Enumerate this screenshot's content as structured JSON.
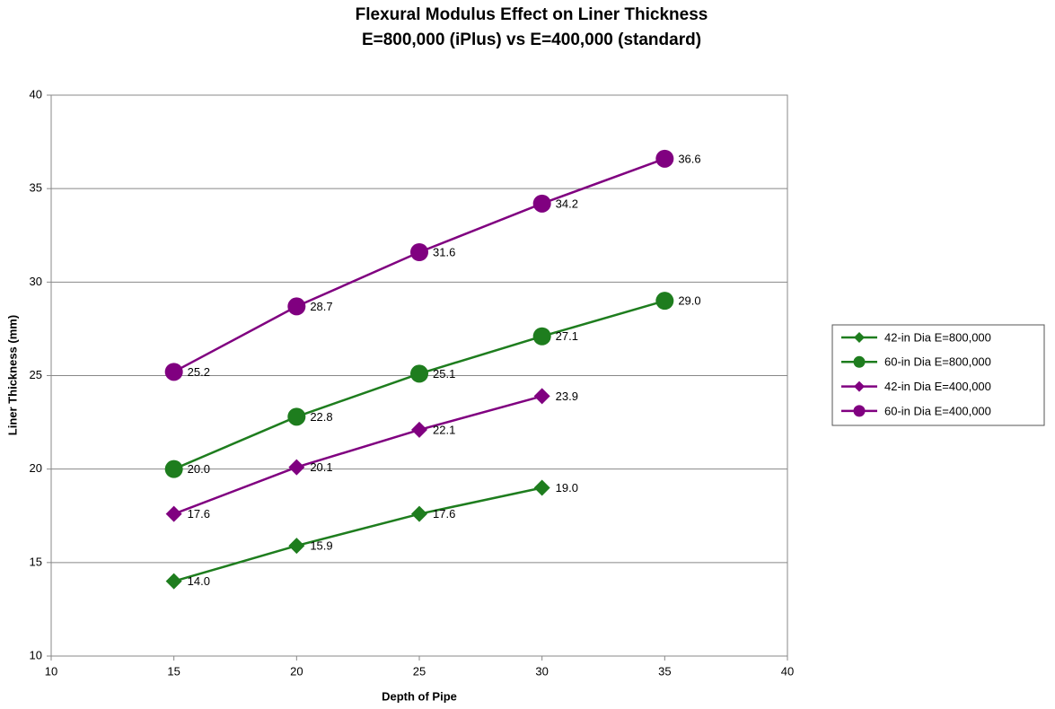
{
  "chart_data": {
    "type": "line",
    "title": "Flexural Modulus Effect on Liner Thickness",
    "subtitle": "E=800,000 (iPlus) vs E=400,000 (standard)",
    "x_label": "Depth of Pipe",
    "y_label": "Liner Thickness (mm)",
    "xlim": [
      10,
      40
    ],
    "xticks": [
      10,
      15,
      20,
      25,
      30,
      35,
      40
    ],
    "ylim": [
      10,
      40
    ],
    "yticks": [
      10,
      15,
      20,
      25,
      30,
      35,
      40
    ],
    "grid": true,
    "legend": "right",
    "series": [
      {
        "name": "42-in Dia E=800,000",
        "color": "#1e7d1e",
        "marker": "diamond",
        "x": [
          15,
          20,
          25,
          30
        ],
        "values": [
          14.0,
          15.9,
          17.6,
          19.0
        ],
        "value_labels": [
          "14.0",
          "15.9",
          "17.6",
          "19.0"
        ]
      },
      {
        "name": "60-in Dia E=800,000",
        "color": "#1e7d1e",
        "marker": "circle",
        "x": [
          15,
          20,
          25,
          30,
          35
        ],
        "values": [
          20.0,
          22.8,
          25.1,
          27.1,
          29.0
        ],
        "value_labels": [
          "20.0",
          "22.8",
          "25.1",
          "27.1",
          "29.0"
        ]
      },
      {
        "name": "42-in Dia E=400,000",
        "color": "#800080",
        "marker": "diamond",
        "x": [
          15,
          20,
          25,
          30
        ],
        "values": [
          17.6,
          20.1,
          22.1,
          23.9
        ],
        "value_labels": [
          "17.6",
          "20.1",
          "22.1",
          "23.9"
        ]
      },
      {
        "name": "60-in Dia E=400,000",
        "color": "#800080",
        "marker": "circle",
        "x": [
          15,
          20,
          25,
          30,
          35
        ],
        "values": [
          25.2,
          28.7,
          31.6,
          34.2,
          36.6
        ],
        "value_labels": [
          "25.2",
          "28.7",
          "31.6",
          "34.2",
          "36.6"
        ]
      }
    ]
  }
}
